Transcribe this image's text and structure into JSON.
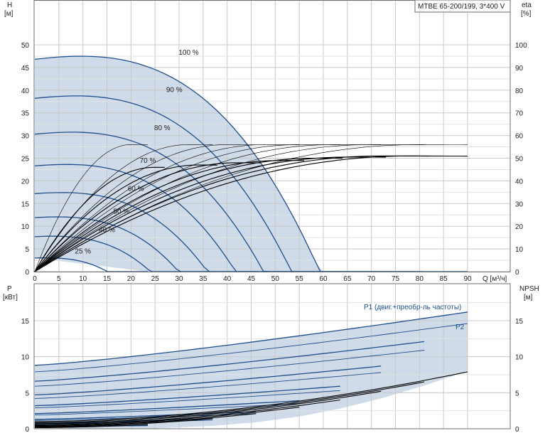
{
  "model_label": "MTBE 65-200/199, 3*400 V",
  "colors": {
    "band_fill": "#cfdbe9",
    "speed_curve": "#1f4e8c",
    "eff_curve": "#000000",
    "grid": "#c8c8c8"
  },
  "chart_data": [
    {
      "type": "line",
      "panel": "head-efficiency",
      "x_axis": {
        "label": "Q [м³/ч]",
        "range": [
          0,
          90
        ],
        "ticks": [
          0,
          5,
          10,
          15,
          20,
          25,
          30,
          35,
          40,
          45,
          50,
          55,
          60,
          65,
          70,
          75,
          80,
          85,
          90
        ]
      },
      "y_left": {
        "label_line1": "H",
        "label_line2": "[м]",
        "range": [
          0,
          50
        ],
        "ticks": [
          0,
          5,
          10,
          15,
          20,
          25,
          30,
          35,
          40,
          45,
          50
        ]
      },
      "y_right": {
        "label_line1": "eta",
        "label_line2": "[%]",
        "range": [
          0,
          100
        ],
        "ticks": [
          0,
          10,
          20,
          30,
          40,
          50,
          60,
          70,
          80,
          90,
          100
        ]
      },
      "grid": true,
      "speed_curves": [
        {
          "name": "100 %",
          "h0": 46.8,
          "k1": 0.125,
          "k2": 0.0036,
          "qmax": 90,
          "label_q": 32,
          "label_h": 47.3
        },
        {
          "name": "90 %",
          "h0": 38.2,
          "k1": 0.11,
          "k2": 0.0036,
          "qmax": 81,
          "label_q": 29,
          "label_h": 39.1
        },
        {
          "name": "80 %",
          "h0": 30.3,
          "k1": 0.1,
          "k2": 0.0036,
          "qmax": 72,
          "label_q": 26.5,
          "label_h": 30.7
        },
        {
          "name": "70 %",
          "h0": 23.3,
          "k1": 0.086,
          "k2": 0.0036,
          "qmax": 63.5,
          "label_q": 23.5,
          "label_h": 23.5
        },
        {
          "name": "60 %",
          "h0": 17.2,
          "k1": 0.072,
          "k2": 0.0036,
          "qmax": 55,
          "label_q": 21,
          "label_h": 17.3
        },
        {
          "name": "50 %",
          "h0": 11.9,
          "k1": 0.06,
          "k2": 0.0036,
          "qmax": 46,
          "label_q": 18,
          "label_h": 12.3
        },
        {
          "name": "40 %",
          "h0": 7.7,
          "k1": 0.048,
          "k2": 0.0036,
          "qmax": 37,
          "label_q": 15,
          "label_h": 8.2
        },
        {
          "name": "25 %",
          "h0": 3.0,
          "k1": 0.03,
          "k2": 0.0036,
          "qmax": 23.5,
          "label_q": 10,
          "label_h": 3.5
        }
      ],
      "efficiency_curves": [
        {
          "qmax": 23.5,
          "emax": 56,
          "qopt": 20
        },
        {
          "qmax": 37,
          "emax": 56,
          "qopt": 32
        },
        {
          "qmax": 46,
          "emax": 56,
          "qopt": 40
        },
        {
          "qmax": 55,
          "emax": 56,
          "qopt": 48
        },
        {
          "qmax": 63.5,
          "emax": 56,
          "qopt": 55
        },
        {
          "qmax": 72,
          "emax": 56,
          "qopt": 62
        },
        {
          "qmax": 81,
          "emax": 56,
          "qopt": 70
        },
        {
          "qmax": 90,
          "emax": 56,
          "qopt": 80
        },
        {
          "qmax": 27,
          "emax": 46,
          "qopt": 25
        },
        {
          "qmax": 38,
          "emax": 47,
          "qopt": 34
        },
        {
          "qmax": 47,
          "emax": 48,
          "qopt": 42
        },
        {
          "qmax": 56,
          "emax": 49,
          "qopt": 51
        },
        {
          "qmax": 64,
          "emax": 50,
          "qopt": 58
        },
        {
          "qmax": 73,
          "emax": 50.5,
          "qopt": 65
        },
        {
          "qmax": 82,
          "emax": 51,
          "qopt": 72
        },
        {
          "qmax": 90,
          "emax": 51,
          "qopt": 78
        }
      ]
    },
    {
      "type": "line",
      "panel": "power-npsh",
      "x_axis": {
        "range": [
          0,
          90
        ]
      },
      "y_left": {
        "label_line1": "P",
        "label_line2": "[кВт]",
        "range": [
          0,
          17.5
        ],
        "ticks": [
          0,
          5,
          10,
          15
        ]
      },
      "y_right": {
        "label_line1": "NPSH",
        "label_line2": "[м]",
        "range": [
          0,
          17.5
        ],
        "ticks": [
          0,
          5,
          10,
          15
        ]
      },
      "grid": true,
      "p1_label": "P1 (двиг.+преобр-ль частоты)",
      "p2_label": "P2",
      "power_curves": [
        {
          "series": "P1",
          "p0": 8.8,
          "p_end": 16.2,
          "qmax": 90
        },
        {
          "series": "P2",
          "p0": 7.9,
          "p_end": 14.6,
          "qmax": 90
        },
        {
          "series": "P1",
          "p0": 6.6,
          "p_end": 12.1,
          "qmax": 81
        },
        {
          "series": "P2",
          "p0": 5.9,
          "p_end": 10.9,
          "qmax": 81
        },
        {
          "series": "P1",
          "p0": 4.7,
          "p_end": 8.7,
          "qmax": 72
        },
        {
          "series": "P2",
          "p0": 4.2,
          "p_end": 7.8,
          "qmax": 72
        },
        {
          "series": "P1",
          "p0": 3.2,
          "p_end": 5.9,
          "qmax": 63.5
        },
        {
          "series": "P2",
          "p0": 2.9,
          "p_end": 5.3,
          "qmax": 63.5
        },
        {
          "series": "P1",
          "p0": 2.1,
          "p_end": 3.9,
          "qmax": 55
        },
        {
          "series": "P2",
          "p0": 1.9,
          "p_end": 3.5,
          "qmax": 55
        },
        {
          "series": "P1",
          "p0": 1.3,
          "p_end": 2.4,
          "qmax": 46
        },
        {
          "series": "P2",
          "p0": 1.15,
          "p_end": 2.1,
          "qmax": 46
        },
        {
          "series": "P1",
          "p0": 0.75,
          "p_end": 1.4,
          "qmax": 37
        },
        {
          "series": "P2",
          "p0": 0.65,
          "p_end": 1.2,
          "qmax": 37
        },
        {
          "series": "P1",
          "p0": 0.3,
          "p_end": 0.5,
          "qmax": 23.5
        },
        {
          "series": "P2",
          "p0": 0.25,
          "p_end": 0.42,
          "qmax": 23.5
        }
      ],
      "npsh_curves": [
        {
          "n0": 1.0,
          "n_end": 7.9,
          "qmax": 90
        },
        {
          "n0": 0.85,
          "n_end": 6.5,
          "qmax": 81
        },
        {
          "n0": 0.7,
          "n_end": 5.2,
          "qmax": 72
        },
        {
          "n0": 0.55,
          "n_end": 4.0,
          "qmax": 63.5
        },
        {
          "n0": 0.45,
          "n_end": 3.0,
          "qmax": 55
        },
        {
          "n0": 0.35,
          "n_end": 2.1,
          "qmax": 46
        },
        {
          "n0": 0.25,
          "n_end": 1.4,
          "qmax": 37
        },
        {
          "n0": 0.15,
          "n_end": 0.6,
          "qmax": 23.5
        }
      ]
    }
  ]
}
